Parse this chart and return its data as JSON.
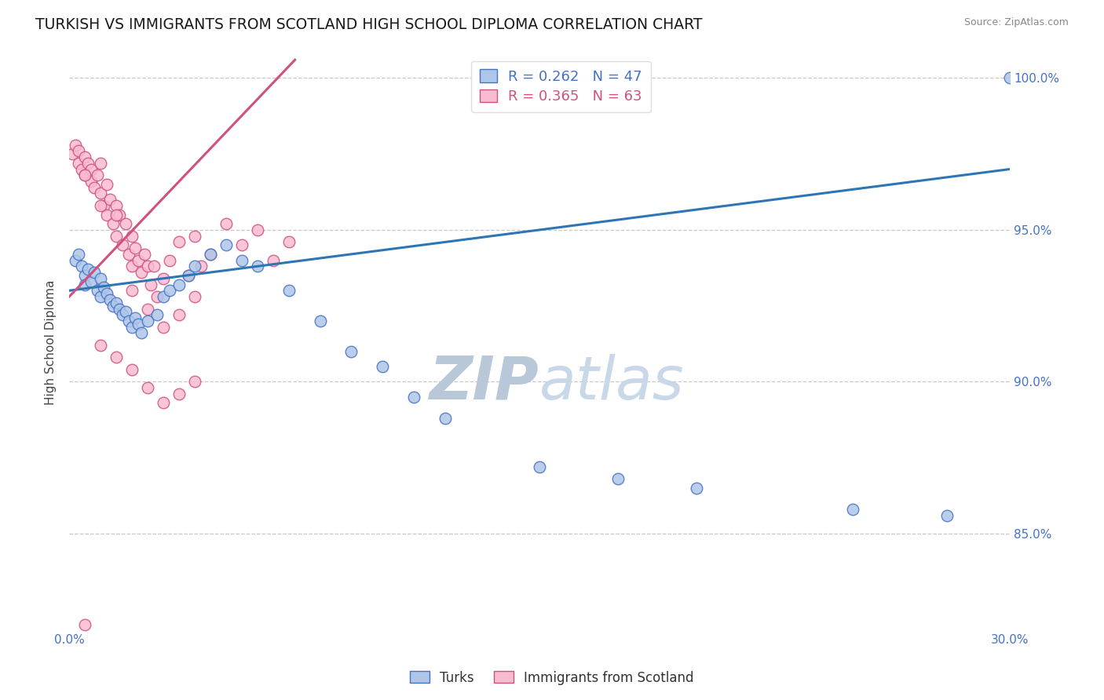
{
  "title": "TURKISH VS IMMIGRANTS FROM SCOTLAND HIGH SCHOOL DIPLOMA CORRELATION CHART",
  "source": "Source: ZipAtlas.com",
  "ylabel": "High School Diploma",
  "legend_labels": [
    "Turks",
    "Immigrants from Scotland"
  ],
  "legend_r_n": [
    {
      "R": "0.262",
      "N": "47",
      "color": "#4472c4"
    },
    {
      "R": "0.365",
      "N": "63",
      "color": "#d05080"
    }
  ],
  "xmin": 0.0,
  "xmax": 0.3,
  "ymin": 0.818,
  "ymax": 1.008,
  "yticks": [
    1.0,
    0.95,
    0.9,
    0.85
  ],
  "ytick_labels": [
    "100.0%",
    "95.0%",
    "90.0%",
    "85.0%"
  ],
  "xtick_positions": [
    0.0,
    0.05,
    0.1,
    0.15,
    0.2,
    0.25,
    0.3
  ],
  "xtick_labels": [
    "0.0%",
    "",
    "",
    "",
    "",
    "",
    "30.0%"
  ],
  "background_color": "#ffffff",
  "grid_color": "#c8c8c8",
  "watermark_text": "ZIPatlas",
  "watermark_color": "#c8d8e8",
  "turks_color": "#aec6e8",
  "turks_edge_color": "#4472c4",
  "scotland_color": "#f8bbd0",
  "scotland_edge_color": "#d05080",
  "turks_line_color": "#2e75b6",
  "scotland_line_color": "#d05080",
  "turks_line": [
    0.0,
    0.3,
    0.93,
    0.97
  ],
  "scotland_line": [
    0.0,
    0.072,
    0.928,
    1.006
  ],
  "turks_x": [
    0.002,
    0.003,
    0.004,
    0.005,
    0.005,
    0.006,
    0.007,
    0.008,
    0.009,
    0.01,
    0.01,
    0.011,
    0.012,
    0.013,
    0.014,
    0.015,
    0.016,
    0.017,
    0.018,
    0.019,
    0.02,
    0.021,
    0.022,
    0.023,
    0.025,
    0.028,
    0.03,
    0.032,
    0.035,
    0.038,
    0.04,
    0.045,
    0.05,
    0.055,
    0.06,
    0.07,
    0.08,
    0.09,
    0.1,
    0.11,
    0.12,
    0.15,
    0.175,
    0.2,
    0.25,
    0.28,
    0.3
  ],
  "turks_y": [
    0.94,
    0.942,
    0.938,
    0.935,
    0.932,
    0.937,
    0.933,
    0.936,
    0.93,
    0.934,
    0.928,
    0.931,
    0.929,
    0.927,
    0.925,
    0.926,
    0.924,
    0.922,
    0.923,
    0.92,
    0.918,
    0.921,
    0.919,
    0.916,
    0.92,
    0.922,
    0.928,
    0.93,
    0.932,
    0.935,
    0.938,
    0.942,
    0.945,
    0.94,
    0.938,
    0.93,
    0.92,
    0.91,
    0.905,
    0.895,
    0.888,
    0.872,
    0.868,
    0.865,
    0.858,
    0.856,
    1.0
  ],
  "scotland_x": [
    0.001,
    0.002,
    0.003,
    0.003,
    0.004,
    0.005,
    0.005,
    0.006,
    0.007,
    0.007,
    0.008,
    0.009,
    0.01,
    0.01,
    0.011,
    0.012,
    0.012,
    0.013,
    0.014,
    0.015,
    0.015,
    0.016,
    0.017,
    0.018,
    0.019,
    0.02,
    0.02,
    0.021,
    0.022,
    0.023,
    0.024,
    0.025,
    0.026,
    0.027,
    0.028,
    0.03,
    0.032,
    0.035,
    0.038,
    0.04,
    0.042,
    0.045,
    0.05,
    0.055,
    0.06,
    0.065,
    0.07,
    0.02,
    0.025,
    0.03,
    0.035,
    0.04,
    0.01,
    0.015,
    0.02,
    0.025,
    0.03,
    0.035,
    0.04,
    0.005,
    0.01,
    0.015,
    0.005
  ],
  "scotland_y": [
    0.975,
    0.978,
    0.976,
    0.972,
    0.97,
    0.974,
    0.968,
    0.972,
    0.966,
    0.97,
    0.964,
    0.968,
    0.972,
    0.962,
    0.958,
    0.965,
    0.955,
    0.96,
    0.952,
    0.958,
    0.948,
    0.955,
    0.945,
    0.952,
    0.942,
    0.948,
    0.938,
    0.944,
    0.94,
    0.936,
    0.942,
    0.938,
    0.932,
    0.938,
    0.928,
    0.934,
    0.94,
    0.946,
    0.935,
    0.948,
    0.938,
    0.942,
    0.952,
    0.945,
    0.95,
    0.94,
    0.946,
    0.93,
    0.924,
    0.918,
    0.922,
    0.928,
    0.912,
    0.908,
    0.904,
    0.898,
    0.893,
    0.896,
    0.9,
    0.968,
    0.958,
    0.955,
    0.82
  ]
}
